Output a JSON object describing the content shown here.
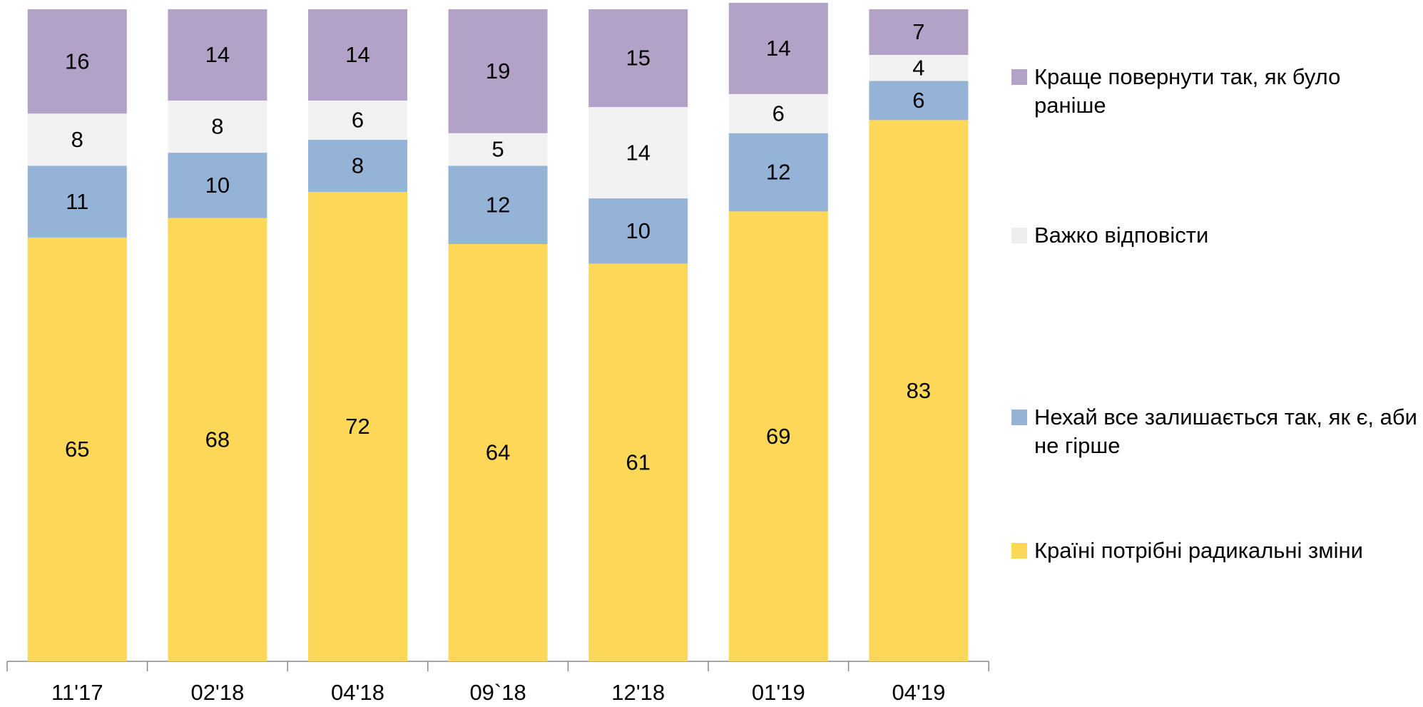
{
  "chart_data": {
    "type": "stacked_bar",
    "categories": [
      "11'17",
      "02'18",
      "04'18",
      "09`18",
      "12'18",
      "01'19",
      "04'19"
    ],
    "series": [
      {
        "name": "Країні потрібні радикальні зміни",
        "color": "#FDD758",
        "values": [
          65,
          68,
          72,
          64,
          61,
          69,
          83
        ]
      },
      {
        "name": "Нехай все залишається так, як є, аби не гірше",
        "color": "#95B3D7",
        "values": [
          11,
          10,
          8,
          12,
          10,
          12,
          6
        ]
      },
      {
        "name": "Важко відповісти",
        "color": "#F2F2F2",
        "values": [
          8,
          8,
          6,
          5,
          14,
          6,
          4
        ]
      },
      {
        "name": "Краще повернути так, як було раніше",
        "color": "#B3A2C7",
        "values": [
          16,
          14,
          14,
          19,
          15,
          14,
          7
        ]
      }
    ],
    "ylim": [
      0,
      100
    ],
    "legend": "right"
  }
}
